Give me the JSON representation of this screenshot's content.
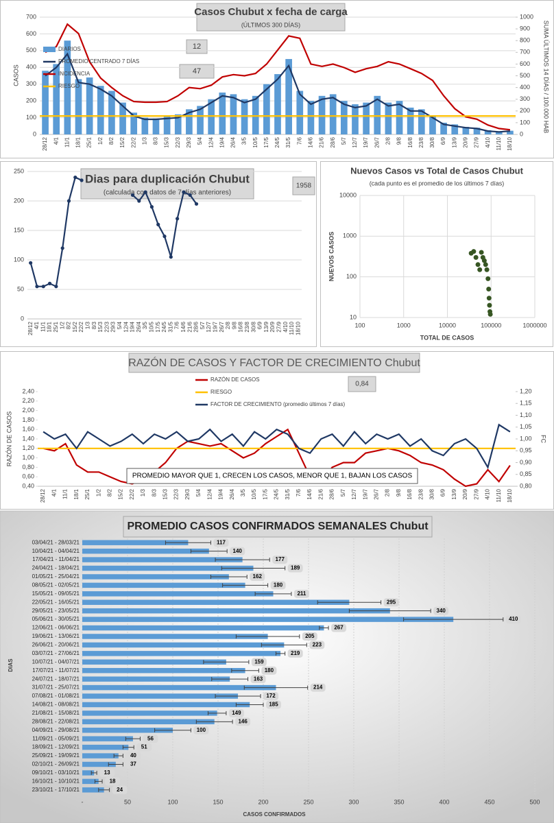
{
  "chart_data": [
    {
      "type": "combo",
      "title": "Casos Chubut x fecha de carga",
      "subtitle": "(ÚLTIMOS 300 DÍAS)",
      "ylabel": "CASOS",
      "y2label": "SUMA ÚLTIMOS 14 DÍAS / 100.000 HAB",
      "annotations": [
        "12",
        "47"
      ],
      "categories": [
        "28/12",
        "4/1",
        "11/1",
        "18/1",
        "25/1",
        "1/2",
        "8/2",
        "15/2",
        "22/2",
        "1/3",
        "8/3",
        "15/3",
        "22/3",
        "29/3",
        "5/4",
        "12/4",
        "19/4",
        "26/4",
        "3/5",
        "10/5",
        "17/5",
        "24/5",
        "31/5",
        "7/6",
        "14/6",
        "21/6",
        "28/6",
        "5/7",
        "12/7",
        "19/7",
        "26/7",
        "2/8",
        "9/8",
        "16/8",
        "23/8",
        "30/8",
        "6/9",
        "13/9",
        "20/9",
        "27/9",
        "4/10",
        "11/10",
        "18/10"
      ],
      "ylim": [
        0,
        700
      ],
      "yticks": [
        0,
        100,
        200,
        300,
        400,
        500,
        600,
        700
      ],
      "y2lim": [
        0,
        1000
      ],
      "y2ticks": [
        0,
        100,
        200,
        300,
        400,
        500,
        600,
        700,
        800,
        900,
        1000
      ],
      "grid": true,
      "series": [
        {
          "name": "DIARIOS",
          "type": "bar",
          "color": "#5b9bd5",
          "values": [
            380,
            420,
            560,
            330,
            340,
            290,
            260,
            190,
            130,
            100,
            95,
            110,
            120,
            150,
            170,
            210,
            250,
            240,
            210,
            230,
            300,
            360,
            450,
            260,
            200,
            230,
            240,
            200,
            180,
            190,
            230,
            190,
            200,
            160,
            150,
            110,
            70,
            60,
            45,
            40,
            25,
            18,
            22
          ]
        },
        {
          "name": "PROMEDIO CENTRADO 7 DÍAS",
          "type": "line",
          "color": "#1f3864",
          "values": [
            350,
            400,
            480,
            310,
            300,
            270,
            230,
            170,
            110,
            90,
            90,
            95,
            100,
            130,
            150,
            190,
            230,
            220,
            190,
            210,
            270,
            330,
            410,
            240,
            180,
            210,
            220,
            180,
            160,
            170,
            210,
            170,
            180,
            140,
            140,
            100,
            60,
            50,
            40,
            35,
            20,
            15,
            20
          ]
        },
        {
          "name": "INCIDENCIA",
          "type": "line",
          "axis": "y2",
          "color": "#c00000",
          "values": [
            700,
            750,
            940,
            860,
            620,
            480,
            400,
            330,
            280,
            275,
            275,
            280,
            330,
            400,
            390,
            420,
            490,
            510,
            500,
            520,
            600,
            720,
            840,
            820,
            600,
            580,
            600,
            570,
            530,
            560,
            580,
            620,
            600,
            560,
            520,
            460,
            330,
            220,
            150,
            130,
            80,
            50,
            40
          ]
        },
        {
          "name": "RIESGO",
          "type": "hline",
          "color": "#ffc000",
          "value": 110
        }
      ]
    },
    {
      "type": "line",
      "title": "Dias para duplicación Chubut",
      "subtitle": "(calculada con datos de 7 días anteriores)",
      "annotations": [
        "1958"
      ],
      "categories": [
        "28/12",
        "4/1",
        "11/1",
        "18/1",
        "25/1",
        "1/2",
        "8/2",
        "15/2",
        "22/2",
        "1/3",
        "8/3",
        "15/3",
        "22/3",
        "29/3",
        "5/4",
        "12/4",
        "19/4",
        "26/4",
        "3/5",
        "10/5",
        "17/5",
        "24/5",
        "31/5",
        "7/6",
        "14/6",
        "21/6",
        "28/6",
        "5/7",
        "12/7",
        "19/7",
        "26/7",
        "2/8",
        "9/8",
        "16/8",
        "23/8",
        "30/8",
        "6/9",
        "13/9",
        "20/9",
        "27/9",
        "4/10",
        "11/10",
        "18/10"
      ],
      "ylim": [
        0,
        250
      ],
      "yticks": [
        0,
        50,
        100,
        150,
        200,
        250
      ],
      "grid": true,
      "series": [
        {
          "type": "line",
          "markers": true,
          "color": "#1f3864",
          "values": [
            95,
            55,
            55,
            60,
            55,
            120,
            200,
            240,
            235,
            null,
            null,
            null,
            null,
            null,
            null,
            null,
            210,
            200,
            215,
            190,
            160,
            140,
            105,
            170,
            215,
            210,
            195,
            null,
            null,
            null,
            null,
            null,
            null,
            null,
            null,
            null,
            null,
            null,
            null,
            null,
            null,
            null,
            null
          ]
        }
      ]
    },
    {
      "type": "scatter",
      "title": "Nuevos Casos vs Total de Casos Chubut",
      "subtitle": "(cada punto es el promedio de los últimos 7 días)",
      "xlabel": "TOTAL DE CASOS",
      "ylabel": "NUEVOS CASOS",
      "xscale": "log",
      "yscale": "log",
      "grid": true,
      "xlim": [
        100,
        1000000
      ],
      "xticks": [
        100,
        1000,
        10000,
        100000,
        1000000
      ],
      "ylim": [
        10,
        10000
      ],
      "yticks": [
        10,
        100,
        1000,
        10000
      ],
      "color": "#375623",
      "x": [
        35000,
        40000,
        45000,
        50000,
        55000,
        60000,
        65000,
        70000,
        75000,
        80000,
        85000,
        88000,
        90000,
        92000,
        94000,
        96000
      ],
      "values": [
        380,
        420,
        300,
        200,
        150,
        400,
        300,
        250,
        200,
        150,
        90,
        50,
        30,
        20,
        14,
        12
      ]
    },
    {
      "type": "combo",
      "title": "RAZÓN DE CASOS Y FACTOR DE CRECIMIENTO Chubut",
      "ylabel": "RAZÓN DE CASOS",
      "y2label": "FC",
      "annotations": [
        "0,84",
        "PROMEDIO MAYOR QUE 1, CRECEN LOS CASOS, MENOR QUE 1, BAJAN LOS CASOS"
      ],
      "categories": [
        "28/12",
        "4/1",
        "11/1",
        "18/1",
        "25/1",
        "1/2",
        "8/2",
        "15/2",
        "22/2",
        "1/3",
        "8/3",
        "15/3",
        "22/3",
        "29/3",
        "5/4",
        "12/4",
        "19/4",
        "26/4",
        "3/5",
        "10/5",
        "17/5",
        "24/5",
        "31/5",
        "7/6",
        "14/6",
        "21/6",
        "28/6",
        "5/7",
        "12/7",
        "19/7",
        "26/7",
        "2/8",
        "9/8",
        "16/8",
        "23/8",
        "30/8",
        "6/9",
        "13/9",
        "20/9",
        "27/9",
        "4/10",
        "11/10",
        "18/10"
      ],
      "ylim": [
        0.4,
        2.4
      ],
      "yticks": [
        {
          "value": 0.4,
          "label": "0,40"
        },
        {
          "value": 0.6,
          "label": "0,60"
        },
        {
          "value": 0.8,
          "label": "0,80"
        },
        {
          "value": 1.0,
          "label": "1,00"
        },
        {
          "value": 1.2,
          "label": "1,20"
        },
        {
          "value": 1.4,
          "label": "1,40"
        },
        {
          "value": 1.6,
          "label": "1,60"
        },
        {
          "value": 1.8,
          "label": "1,80"
        },
        {
          "value": 2.0,
          "label": "2,00"
        },
        {
          "value": 2.2,
          "label": "2,20"
        },
        {
          "value": 2.4,
          "label": "2,40"
        }
      ],
      "y2lim": [
        0.8,
        1.2
      ],
      "y2ticks": [
        {
          "value": 0.8,
          "label": "0,80"
        },
        {
          "value": 0.85,
          "label": "0,85"
        },
        {
          "value": 0.9,
          "label": "0,90"
        },
        {
          "value": 0.95,
          "label": "0,95"
        },
        {
          "value": 1.0,
          "label": "1,00"
        },
        {
          "value": 1.05,
          "label": "1,05"
        },
        {
          "value": 1.1,
          "label": "1,10"
        },
        {
          "value": 1.15,
          "label": "1,15"
        },
        {
          "value": 1.2,
          "label": "1,20"
        }
      ],
      "grid": false,
      "series": [
        {
          "name": "RAZÓN DE CASOS",
          "type": "line",
          "color": "#c00000",
          "values": [
            1.2,
            1.15,
            1.3,
            0.85,
            0.7,
            0.7,
            0.6,
            0.5,
            0.45,
            0.55,
            0.7,
            0.9,
            1.2,
            1.35,
            1.3,
            1.25,
            1.3,
            1.15,
            1.0,
            1.1,
            1.3,
            1.45,
            1.6,
            1.1,
            0.6,
            0.5,
            0.8,
            0.9,
            0.9,
            1.1,
            1.15,
            1.2,
            1.15,
            1.05,
            0.9,
            0.85,
            0.75,
            0.55,
            0.4,
            0.45,
            0.75,
            0.5,
            0.84
          ]
        },
        {
          "name": "RIESGO",
          "type": "hline",
          "color": "#ffc000",
          "value": 1.2
        },
        {
          "name": "FACTOR DE CRECIMIENTO (promedio últimos 7 días)",
          "type": "line",
          "axis": "y2",
          "color": "#1f3864",
          "values": [
            1.03,
            1.0,
            1.02,
            0.96,
            1.03,
            1.0,
            0.97,
            0.99,
            1.02,
            0.98,
            1.02,
            1.0,
            1.03,
            0.99,
            1.0,
            1.04,
            0.99,
            1.02,
            0.97,
            1.03,
            1.0,
            1.04,
            1.02,
            0.96,
            0.94,
            1.0,
            1.02,
            0.97,
            1.03,
            0.98,
            1.02,
            1.0,
            1.02,
            0.97,
            1.0,
            0.95,
            0.93,
            0.98,
            1.0,
            0.96,
            0.88,
            1.06,
            1.03
          ]
        }
      ]
    },
    {
      "type": "barh",
      "title": "PROMEDIO CASOS CONFIRMADOS SEMANALES Chubut",
      "xlabel": "CASOS CONFIRMADOS",
      "ylabel": "DIAS",
      "color": "#5b9bd5",
      "xlim": [
        0,
        500
      ],
      "xticks": [
        {
          "value": 0,
          "label": "-"
        },
        50,
        100,
        150,
        200,
        250,
        300,
        350,
        400,
        450,
        500
      ],
      "categories": [
        "03/04/21 - 28/03/21",
        "10/04/21 - 04/04/21",
        "17/04/21 - 11/04/21",
        "24/04/21 - 18/04/21",
        "01/05/21 - 25/04/21",
        "08/05/21 - 02/05/21",
        "15/05/21 - 09/05/21",
        "22/05/21 - 16/05/21",
        "29/05/21 - 23/05/21",
        "05/06/21 - 30/05/21",
        "12/06/21 - 06/06/21",
        "19/06/21 - 13/06/21",
        "26/06/21 - 20/06/21",
        "03/07/21 - 27/06/21",
        "10/07/21 - 04/07/21",
        "17/07/21 - 11/07/21",
        "24/07/21 - 18/07/21",
        "31/07/21 - 25/07/21",
        "07/08/21 - 01/08/21",
        "14/08/21 - 08/08/21",
        "21/08/21 - 15/08/21",
        "28/08/21 - 22/08/21",
        "04/09/21 - 29/08/21",
        "11/09/21 - 05/09/21",
        "18/09/21 - 12/09/21",
        "25/09/21 - 19/09/21",
        "02/10/21 - 26/09/21",
        "09/10/21 - 03/10/21",
        "16/10/21 - 10/10/21",
        "23/10/21 - 17/10/21"
      ],
      "values": [
        117,
        140,
        177,
        189,
        162,
        180,
        211,
        295,
        340,
        410,
        267,
        205,
        223,
        219,
        159,
        180,
        163,
        214,
        172,
        185,
        149,
        146,
        100,
        56,
        51,
        40,
        37,
        13,
        18,
        24
      ],
      "errors": [
        25,
        20,
        30,
        35,
        20,
        25,
        20,
        35,
        45,
        55,
        5,
        35,
        25,
        5,
        25,
        15,
        20,
        35,
        25,
        15,
        10,
        20,
        20,
        8,
        6,
        5,
        8,
        3,
        4,
        6
      ]
    }
  ]
}
